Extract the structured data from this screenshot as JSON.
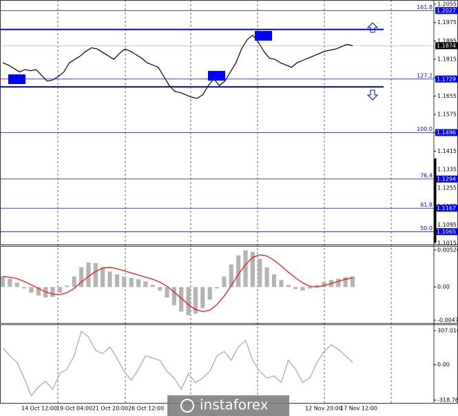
{
  "chart_data": [
    {
      "type": "line",
      "color": "#000000",
      "values": [
        1.18,
        1.179,
        1.1775,
        1.176,
        1.177,
        1.1765,
        1.177,
        1.1745,
        1.172,
        1.1725,
        1.174,
        1.176,
        1.18,
        1.1815,
        1.183,
        1.185,
        1.1865,
        1.186,
        1.1845,
        1.183,
        1.1815,
        1.184,
        1.186,
        1.185,
        1.1835,
        1.182,
        1.18,
        1.179,
        1.178,
        1.174,
        1.17,
        1.1675,
        1.167,
        1.166,
        1.165,
        1.1645,
        1.166,
        1.17,
        1.173,
        1.17,
        1.172,
        1.176,
        1.18,
        1.186,
        1.19,
        1.192,
        1.189,
        1.185,
        1.182,
        1.1815,
        1.18,
        1.179,
        1.178,
        1.18,
        1.181,
        1.182,
        1.183,
        1.184,
        1.185,
        1.1855,
        1.186,
        1.187,
        1.188,
        1.1874
      ],
      "ylim": [
        1.1015,
        1.2055
      ],
      "yticks": [
        1.2055,
        1.1975,
        1.1895,
        1.1815,
        1.1735,
        1.1655,
        1.1575,
        1.1495,
        1.1415,
        1.1335,
        1.1255,
        1.1175,
        1.1095,
        1.1015
      ],
      "levels": [
        {
          "label": "161.8",
          "price": 1.2027
        },
        {
          "label": "127.2",
          "price": 1.1729
        },
        {
          "label": "100.0",
          "price": 1.1496
        },
        {
          "label": "76.4",
          "price": 1.1294
        },
        {
          "label": "61.8",
          "price": 1.1167
        },
        {
          "label": "50.0",
          "price": 1.1065
        }
      ],
      "lines": [
        1.1945,
        1.1695
      ],
      "current_price": 1.1874
    },
    {
      "type": "bar",
      "color": "#b4b4b4",
      "signal_color": "#ff0000",
      "values": [
        0.0015,
        0.0012,
        0.0006,
        -0.0002,
        -0.0008,
        -0.0012,
        -0.0015,
        -0.0014,
        -0.0008,
        0.0002,
        0.0015,
        0.0028,
        0.0035,
        0.0034,
        0.0028,
        0.0022,
        0.0018,
        0.0015,
        0.0013,
        0.0011,
        0.0008,
        0.0003,
        -0.0005,
        -0.0015,
        -0.0026,
        -0.0035,
        -0.004,
        -0.0038,
        -0.003,
        -0.0018,
        -0.0002,
        0.0015,
        0.0032,
        0.0045,
        0.0052,
        0.005,
        0.004,
        0.0028,
        0.0018,
        0.001,
        0.0003,
        -0.0003,
        -0.0005,
        -0.0002,
        0.0003,
        0.0007,
        0.001,
        0.0012,
        0.0014,
        0.0015
      ],
      "signal": [
        0.0015,
        0.0014,
        0.0012,
        0.0008,
        0.0003,
        -0.0002,
        -0.0007,
        -0.001,
        -0.0011,
        -0.0008,
        -0.0002,
        0.0007,
        0.0015,
        0.0022,
        0.0027,
        0.0028,
        0.0026,
        0.0023,
        0.002,
        0.0017,
        0.0014,
        0.0011,
        0.0007,
        0.0001,
        -0.0007,
        -0.0016,
        -0.0025,
        -0.0032,
        -0.0035,
        -0.0033,
        -0.0025,
        -0.0013,
        0.0002,
        0.0018,
        0.0032,
        0.0042,
        0.0046,
        0.0044,
        0.0038,
        0.003,
        0.0021,
        0.0013,
        0.0006,
        0.0001,
        0.0,
        0.0002,
        0.0005,
        0.0008,
        0.0011,
        0.0013
      ],
      "ylim": [
        -0.00473,
        0.00526
      ],
      "yticks": [
        0.00526,
        {
          "value": 0,
          "label": "0.00"
        },
        -0.00473
      ]
    },
    {
      "type": "line",
      "color": "#b4b4b4",
      "values": [
        150,
        80,
        20,
        -120,
        -280,
        -200,
        -150,
        -220,
        -80,
        -40,
        80,
        300,
        250,
        130,
        100,
        160,
        60,
        -60,
        -140,
        -40,
        80,
        60,
        40,
        -60,
        -120,
        -220,
        -80,
        -160,
        -120,
        -60,
        80,
        120,
        40,
        160,
        220,
        40,
        -60,
        -120,
        -100,
        -160,
        40,
        -40,
        -160,
        -120,
        20,
        120,
        180,
        140,
        80,
        20
      ],
      "ylim": [
        -318.767,
        307.0161
      ],
      "yticks": [
        307.0161,
        {
          "value": 0,
          "label": "0.00"
        },
        -318.767
      ]
    }
  ],
  "x_labels": [
    "14 Oct 12:00",
    "19 Oct 04:00",
    "21 Oct 20:00",
    "26 Oct 12:00",
    "12 Nov 20:00",
    "17 Nov 12:00"
  ],
  "watermark": "instaforex"
}
